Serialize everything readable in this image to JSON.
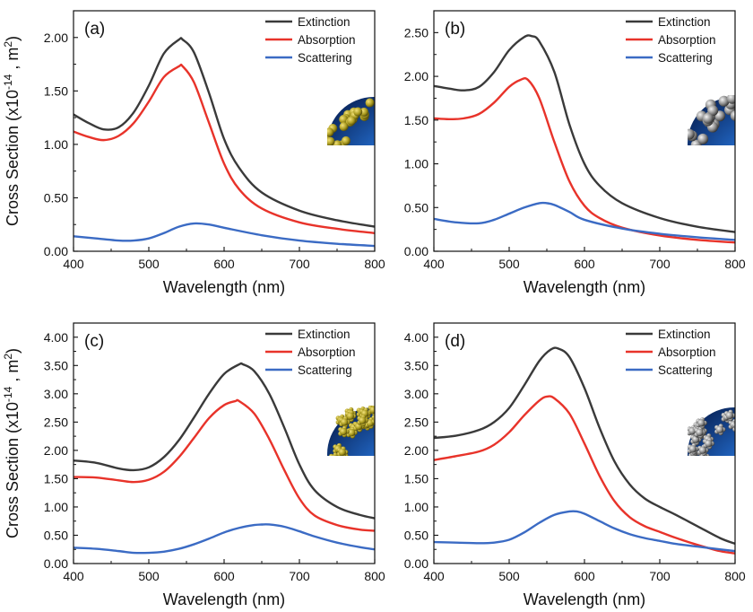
{
  "chart_data": [
    {
      "type": "line",
      "panel_label": "(a)",
      "xlabel": "Wavelength (nm)",
      "ylabel": "Cross Section (x10^-14 , m^2)",
      "xlim": [
        400,
        800
      ],
      "ylim": [
        0,
        2.25
      ],
      "xticks": [
        400,
        500,
        600,
        700,
        800
      ],
      "yticks": [
        "0.00",
        "0.50",
        "1.00",
        "1.50",
        "2.00"
      ],
      "legend_position": "top-right",
      "inset_particles": "gold",
      "series": [
        {
          "name": "Extinction",
          "color": "#3a3a3a",
          "x": [
            400,
            420,
            440,
            460,
            480,
            500,
            520,
            540,
            545,
            560,
            580,
            600,
            620,
            650,
            700,
            750,
            800
          ],
          "y": [
            1.28,
            1.2,
            1.14,
            1.16,
            1.3,
            1.55,
            1.85,
            1.98,
            1.98,
            1.86,
            1.48,
            1.05,
            0.78,
            0.55,
            0.38,
            0.29,
            0.23
          ]
        },
        {
          "name": "Absorption",
          "color": "#e8332a",
          "x": [
            400,
            420,
            440,
            460,
            480,
            500,
            520,
            540,
            545,
            560,
            580,
            600,
            620,
            650,
            700,
            750,
            800
          ],
          "y": [
            1.12,
            1.07,
            1.04,
            1.08,
            1.2,
            1.4,
            1.63,
            1.73,
            1.73,
            1.58,
            1.2,
            0.82,
            0.58,
            0.4,
            0.27,
            0.21,
            0.17
          ]
        },
        {
          "name": "Scattering",
          "color": "#3b6bc4",
          "x": [
            400,
            430,
            460,
            480,
            500,
            520,
            540,
            560,
            580,
            600,
            650,
            700,
            750,
            800
          ],
          "y": [
            0.14,
            0.12,
            0.1,
            0.1,
            0.12,
            0.17,
            0.23,
            0.26,
            0.25,
            0.22,
            0.15,
            0.1,
            0.07,
            0.05
          ]
        }
      ]
    },
    {
      "type": "line",
      "panel_label": "(b)",
      "xlabel": "Wavelength (nm)",
      "ylabel": "",
      "xlim": [
        400,
        800
      ],
      "ylim": [
        0,
        2.75
      ],
      "xticks": [
        400,
        500,
        600,
        700,
        800
      ],
      "yticks": [
        "0.00",
        "0.50",
        "1.00",
        "1.50",
        "2.00",
        "2.50"
      ],
      "legend_position": "top-right",
      "inset_particles": "silver",
      "series": [
        {
          "name": "Extinction",
          "color": "#3a3a3a",
          "x": [
            400,
            420,
            440,
            460,
            480,
            500,
            520,
            530,
            540,
            560,
            580,
            600,
            620,
            650,
            700,
            750,
            800
          ],
          "y": [
            1.89,
            1.86,
            1.84,
            1.88,
            2.05,
            2.3,
            2.45,
            2.46,
            2.4,
            2.05,
            1.45,
            1.0,
            0.75,
            0.55,
            0.38,
            0.28,
            0.22
          ]
        },
        {
          "name": "Absorption",
          "color": "#e8332a",
          "x": [
            400,
            420,
            440,
            460,
            480,
            500,
            515,
            525,
            540,
            560,
            580,
            600,
            620,
            650,
            700,
            750,
            800
          ],
          "y": [
            1.52,
            1.51,
            1.52,
            1.57,
            1.7,
            1.88,
            1.96,
            1.96,
            1.75,
            1.25,
            0.8,
            0.52,
            0.38,
            0.27,
            0.18,
            0.13,
            0.1
          ]
        },
        {
          "name": "Scattering",
          "color": "#3b6bc4",
          "x": [
            400,
            430,
            460,
            480,
            500,
            520,
            540,
            550,
            560,
            580,
            600,
            650,
            700,
            750,
            800
          ],
          "y": [
            0.37,
            0.33,
            0.32,
            0.36,
            0.43,
            0.5,
            0.55,
            0.55,
            0.53,
            0.45,
            0.36,
            0.26,
            0.2,
            0.16,
            0.13
          ]
        }
      ]
    },
    {
      "type": "line",
      "panel_label": "(c)",
      "xlabel": "Wavelength (nm)",
      "ylabel": "Cross Section (x10^-14 , m^2)",
      "xlim": [
        400,
        800
      ],
      "ylim": [
        0,
        4.25
      ],
      "xticks": [
        400,
        500,
        600,
        700,
        800
      ],
      "yticks": [
        "0.00",
        "0.50",
        "1.00",
        "1.50",
        "2.00",
        "2.50",
        "3.00",
        "3.50",
        "4.00"
      ],
      "legend_position": "top-right",
      "inset_particles": "gold-clusters",
      "series": [
        {
          "name": "Extinction",
          "color": "#3a3a3a",
          "x": [
            400,
            430,
            460,
            480,
            500,
            520,
            540,
            560,
            580,
            600,
            620,
            625,
            640,
            660,
            680,
            700,
            720,
            750,
            780,
            800
          ],
          "y": [
            1.82,
            1.78,
            1.68,
            1.65,
            1.7,
            1.88,
            2.18,
            2.58,
            3.0,
            3.35,
            3.52,
            3.52,
            3.4,
            3.0,
            2.4,
            1.75,
            1.3,
            1.0,
            0.86,
            0.8
          ]
        },
        {
          "name": "Absorption",
          "color": "#e8332a",
          "x": [
            400,
            430,
            460,
            480,
            500,
            520,
            540,
            560,
            580,
            600,
            615,
            620,
            640,
            660,
            680,
            700,
            720,
            750,
            780,
            800
          ],
          "y": [
            1.53,
            1.52,
            1.47,
            1.44,
            1.48,
            1.62,
            1.88,
            2.22,
            2.57,
            2.8,
            2.87,
            2.87,
            2.65,
            2.2,
            1.65,
            1.15,
            0.85,
            0.68,
            0.6,
            0.58
          ]
        },
        {
          "name": "Scattering",
          "color": "#3b6bc4",
          "x": [
            400,
            430,
            460,
            480,
            500,
            520,
            540,
            560,
            580,
            600,
            620,
            640,
            650,
            660,
            680,
            700,
            720,
            750,
            780,
            800
          ],
          "y": [
            0.28,
            0.26,
            0.22,
            0.19,
            0.19,
            0.21,
            0.26,
            0.34,
            0.44,
            0.55,
            0.63,
            0.68,
            0.69,
            0.69,
            0.65,
            0.57,
            0.48,
            0.37,
            0.29,
            0.25
          ]
        }
      ]
    },
    {
      "type": "line",
      "panel_label": "(d)",
      "xlabel": "Wavelength (nm)",
      "ylabel": "",
      "xlim": [
        400,
        800
      ],
      "ylim": [
        0,
        4.25
      ],
      "xticks": [
        400,
        500,
        600,
        700,
        800
      ],
      "yticks": [
        "0.00",
        "0.50",
        "1.00",
        "1.50",
        "2.00",
        "2.50",
        "3.00",
        "3.50",
        "4.00"
      ],
      "legend_position": "top-right",
      "inset_particles": "silver-clusters",
      "series": [
        {
          "name": "Extinction",
          "color": "#3a3a3a",
          "x": [
            400,
            430,
            460,
            480,
            500,
            520,
            540,
            555,
            565,
            580,
            600,
            620,
            640,
            660,
            680,
            700,
            720,
            750,
            780,
            800
          ],
          "y": [
            2.22,
            2.26,
            2.36,
            2.5,
            2.75,
            3.15,
            3.58,
            3.78,
            3.8,
            3.65,
            3.1,
            2.4,
            1.8,
            1.4,
            1.15,
            1.0,
            0.87,
            0.66,
            0.45,
            0.35
          ]
        },
        {
          "name": "Absorption",
          "color": "#e8332a",
          "x": [
            400,
            430,
            460,
            480,
            500,
            520,
            540,
            550,
            560,
            580,
            600,
            620,
            640,
            660,
            680,
            700,
            720,
            750,
            780,
            800
          ],
          "y": [
            1.83,
            1.9,
            1.98,
            2.1,
            2.32,
            2.62,
            2.88,
            2.95,
            2.92,
            2.65,
            2.12,
            1.55,
            1.1,
            0.82,
            0.66,
            0.56,
            0.46,
            0.33,
            0.22,
            0.18
          ]
        },
        {
          "name": "Scattering",
          "color": "#3b6bc4",
          "x": [
            400,
            430,
            460,
            480,
            500,
            520,
            540,
            560,
            580,
            590,
            600,
            620,
            640,
            660,
            680,
            700,
            720,
            750,
            780,
            800
          ],
          "y": [
            0.38,
            0.37,
            0.36,
            0.37,
            0.42,
            0.55,
            0.72,
            0.86,
            0.92,
            0.92,
            0.88,
            0.75,
            0.62,
            0.52,
            0.45,
            0.4,
            0.35,
            0.3,
            0.25,
            0.22
          ]
        }
      ]
    }
  ]
}
